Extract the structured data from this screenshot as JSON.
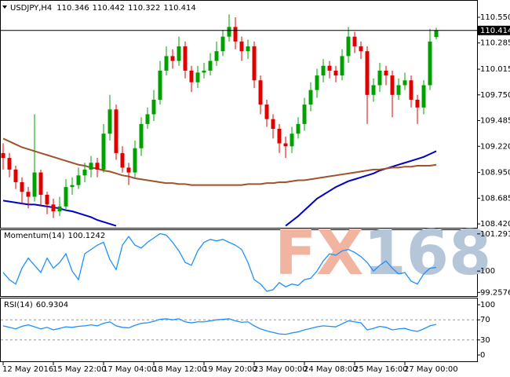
{
  "chart_data": [
    {
      "type": "candlestick",
      "title": "USDJPY,H4",
      "categories": [
        "12 May 2016",
        null,
        null,
        null,
        null,
        null,
        null,
        null,
        "15 May 22:00",
        null,
        null,
        null,
        null,
        null,
        null,
        null,
        "17 May 04:00",
        null,
        null,
        null,
        null,
        null,
        null,
        null,
        "18 May 12:00",
        null,
        null,
        null,
        null,
        null,
        null,
        null,
        "19 May 20:00",
        null,
        null,
        null,
        null,
        null,
        null,
        null,
        "23 May 00:00",
        null,
        null,
        null,
        null,
        null,
        null,
        null,
        "24 May 08:00",
        null,
        null,
        null,
        null,
        null,
        null,
        null,
        "25 May 16:00",
        null,
        null,
        null,
        null,
        null,
        null,
        null,
        "27 May 00:00",
        null,
        null,
        null,
        null,
        null
      ],
      "open": [
        109.15,
        109.1,
        108.98,
        108.85,
        108.75,
        108.7,
        108.95,
        108.72,
        108.62,
        108.55,
        108.6,
        108.8,
        108.82,
        108.92,
        108.98,
        109.05,
        108.98,
        109.35,
        109.6,
        109.15,
        109.0,
        108.95,
        109.2,
        109.45,
        109.55,
        109.7,
        110.0,
        110.15,
        110.1,
        110.25,
        110.0,
        109.88,
        109.98,
        110.0,
        110.1,
        110.2,
        110.35,
        110.45,
        110.3,
        110.2,
        110.25,
        109.9,
        109.65,
        109.5,
        109.4,
        109.25,
        109.22,
        109.35,
        109.45,
        109.65,
        109.8,
        109.95,
        110.05,
        110.0,
        109.95,
        110.15,
        110.35,
        110.25,
        110.2,
        109.75,
        109.85,
        110.0,
        109.95,
        109.75,
        109.85,
        109.9,
        109.7,
        109.62,
        109.85,
        110.346
      ],
      "high": [
        109.25,
        109.15,
        109.02,
        108.9,
        108.8,
        109.55,
        108.98,
        108.75,
        108.68,
        108.7,
        108.88,
        108.9,
        109.0,
        109.05,
        109.12,
        109.1,
        109.45,
        109.75,
        109.65,
        109.22,
        109.05,
        109.28,
        109.52,
        109.62,
        109.8,
        110.1,
        110.25,
        110.22,
        110.35,
        110.3,
        110.05,
        110.05,
        110.08,
        110.18,
        110.3,
        110.42,
        110.58,
        110.55,
        110.35,
        110.32,
        110.3,
        109.95,
        109.7,
        109.55,
        109.45,
        109.32,
        109.42,
        109.52,
        109.72,
        109.88,
        110.02,
        110.12,
        110.1,
        110.05,
        110.22,
        110.45,
        110.4,
        110.3,
        110.25,
        109.92,
        110.08,
        110.05,
        110.0,
        109.92,
        109.98,
        109.95,
        109.75,
        109.9,
        110.43,
        110.442
      ],
      "low": [
        108.98,
        108.9,
        108.78,
        108.62,
        108.58,
        108.65,
        108.6,
        108.52,
        108.48,
        108.5,
        108.55,
        108.72,
        108.78,
        108.85,
        108.9,
        108.9,
        108.95,
        109.28,
        109.08,
        108.95,
        108.82,
        108.9,
        109.12,
        109.4,
        109.48,
        109.65,
        109.95,
        110.02,
        110.05,
        109.92,
        109.78,
        109.82,
        109.92,
        109.95,
        110.05,
        110.15,
        110.3,
        110.22,
        110.1,
        110.12,
        109.82,
        109.55,
        109.42,
        109.3,
        109.15,
        109.1,
        109.15,
        109.3,
        109.38,
        109.58,
        109.72,
        109.88,
        109.92,
        109.88,
        109.9,
        110.08,
        110.18,
        110.12,
        109.45,
        109.68,
        109.78,
        109.85,
        109.52,
        109.7,
        109.8,
        109.62,
        109.45,
        109.55,
        109.8,
        110.322
      ],
      "close": [
        109.1,
        108.98,
        108.85,
        108.75,
        108.7,
        108.95,
        108.72,
        108.62,
        108.55,
        108.6,
        108.8,
        108.82,
        108.92,
        108.98,
        109.05,
        108.98,
        109.35,
        109.6,
        109.15,
        109.0,
        108.95,
        109.2,
        109.45,
        109.55,
        109.7,
        110.0,
        110.15,
        110.1,
        110.25,
        110.0,
        109.88,
        109.98,
        110.0,
        110.1,
        110.2,
        110.35,
        110.45,
        110.3,
        110.2,
        110.25,
        109.9,
        109.65,
        109.5,
        109.4,
        109.25,
        109.22,
        109.35,
        109.45,
        109.65,
        109.8,
        109.95,
        110.05,
        110.0,
        109.95,
        110.15,
        110.35,
        110.25,
        110.2,
        109.75,
        109.85,
        110.0,
        109.95,
        109.75,
        109.85,
        109.9,
        109.7,
        109.62,
        109.85,
        110.3,
        110.414
      ],
      "colors": {
        "up": "#00a000",
        "down": "#e00000"
      },
      "lines": [
        {
          "color": "#0000c8",
          "values": [
            108.66,
            108.65,
            108.64,
            108.63,
            108.62,
            108.62,
            108.61,
            108.6,
            108.59,
            108.58,
            108.56,
            108.55,
            108.53,
            108.51,
            108.49,
            108.46,
            108.44,
            108.42,
            108.4,
            null,
            null,
            null,
            null,
            null,
            null,
            null,
            null,
            null,
            null,
            null,
            null,
            null,
            null,
            null,
            null,
            null,
            null,
            null,
            null,
            null,
            null,
            null,
            null,
            null,
            null,
            108.4,
            108.45,
            108.5,
            108.56,
            108.62,
            108.68,
            108.72,
            108.76,
            108.8,
            108.83,
            108.86,
            108.88,
            108.9,
            108.92,
            108.94,
            108.97,
            108.99,
            109.01,
            109.03,
            109.05,
            109.07,
            109.09,
            109.11,
            109.14,
            109.17
          ]
        },
        {
          "color": "#a0522d",
          "values": [
            109.3,
            109.27,
            109.24,
            109.21,
            109.19,
            109.17,
            109.15,
            109.13,
            109.11,
            109.09,
            109.07,
            109.05,
            109.03,
            109.02,
            109.0,
            108.99,
            108.97,
            108.96,
            108.94,
            108.92,
            108.91,
            108.89,
            108.88,
            108.87,
            108.86,
            108.85,
            108.84,
            108.84,
            108.83,
            108.83,
            108.82,
            108.82,
            108.82,
            108.82,
            108.82,
            108.82,
            108.82,
            108.82,
            108.82,
            108.83,
            108.83,
            108.83,
            108.84,
            108.84,
            108.85,
            108.85,
            108.86,
            108.87,
            108.87,
            108.88,
            108.89,
            108.9,
            108.91,
            108.92,
            108.93,
            108.94,
            108.95,
            108.96,
            108.97,
            108.98,
            108.98,
            108.99,
            109.0,
            109.0,
            109.01,
            109.01,
            109.02,
            109.02,
            109.02,
            109.03
          ]
        }
      ],
      "ylim": [
        108.38,
        110.728
      ],
      "yticks": [
        {
          "value": 110.55,
          "label": "110.550"
        },
        110.285,
        110.015,
        {
          "value": 109.75,
          "label": "109.750"
        },
        109.485,
        {
          "value": 109.22,
          "label": "109.220"
        },
        {
          "value": 108.95,
          "label": "108.950"
        },
        108.685,
        {
          "value": 108.42,
          "label": "108.420"
        }
      ]
    },
    {
      "type": "line",
      "title": "Momentum(14)",
      "color": "#1e90ff",
      "values": [
        99.95,
        99.7,
        99.55,
        100.1,
        100.45,
        100.2,
        99.95,
        100.45,
        100.1,
        100.3,
        100.6,
        100.0,
        99.7,
        100.6,
        100.75,
        100.9,
        101.0,
        100.4,
        100.05,
        100.9,
        101.2,
        100.9,
        100.8,
        101.0,
        101.15,
        101.3,
        101.25,
        101.0,
        100.7,
        100.3,
        100.2,
        100.7,
        101.0,
        101.1,
        101.05,
        101.1,
        101.0,
        100.9,
        100.75,
        100.3,
        99.7,
        99.55,
        99.3,
        99.35,
        99.6,
        99.45,
        99.55,
        99.5,
        99.7,
        99.75,
        100.0,
        100.35,
        100.6,
        100.55,
        100.7,
        100.75,
        100.65,
        100.5,
        100.3,
        100.0,
        100.2,
        100.35,
        100.1,
        99.9,
        99.95,
        99.65,
        99.55,
        99.9,
        100.1,
        100.1242
      ],
      "ylim": [
        99.13,
        101.45
      ],
      "yticks": [
        101.2918,
        100,
        99.2576
      ]
    },
    {
      "type": "line",
      "title": "RSI(14)",
      "color": "#1e90ff",
      "values": [
        58,
        55,
        52,
        57,
        60,
        56,
        52,
        55,
        50,
        53,
        56,
        55,
        57,
        58,
        60,
        58,
        63,
        66,
        58,
        55,
        54,
        59,
        63,
        64,
        67,
        71,
        72,
        70,
        72,
        66,
        64,
        66,
        66,
        68,
        70,
        71,
        72,
        68,
        65,
        66,
        58,
        52,
        48,
        45,
        42,
        41,
        44,
        46,
        50,
        53,
        56,
        58,
        57,
        56,
        62,
        68,
        66,
        64,
        50,
        53,
        57,
        55,
        50,
        52,
        53,
        49,
        47,
        52,
        58,
        60.9304
      ],
      "ylim": [
        -12.5,
        112.5
      ],
      "yticks": [
        100,
        70,
        30,
        0
      ],
      "levels": [
        70,
        30
      ]
    }
  ],
  "watermark": {
    "left": "FX",
    "right": "168",
    "left_color": "#f0b4a0",
    "right_color": "#b4c6d8"
  }
}
